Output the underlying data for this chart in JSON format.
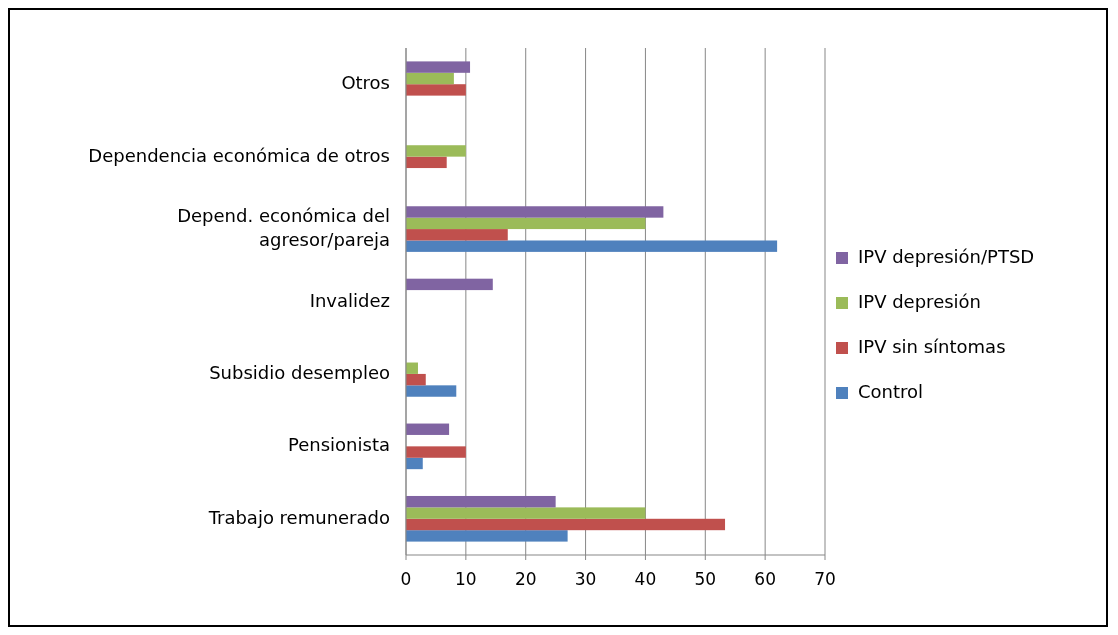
{
  "chart_data": {
    "type": "bar",
    "orientation": "horizontal",
    "categories": [
      "Otros",
      "Dependencia económica de otros",
      "Depend. económica del agresor/pareja",
      "Invalidez",
      "Subsidio desempleo",
      "Pensionista",
      "Trabajo remunerado"
    ],
    "series": [
      {
        "name": "Control",
        "color": "#4f81bd",
        "values": [
          0,
          0,
          62,
          0,
          8.4,
          2.8,
          27
        ]
      },
      {
        "name": "IPV sin síntomas",
        "color": "#c0504d",
        "values": [
          10,
          6.8,
          17,
          0,
          3.3,
          10,
          53.3
        ]
      },
      {
        "name": "IPV depresión",
        "color": "#9bbb59",
        "values": [
          8,
          10,
          40,
          0,
          2,
          0,
          40
        ]
      },
      {
        "name": "IPV depresión/PTSD",
        "color": "#8064a2",
        "values": [
          10.7,
          0,
          43,
          14.5,
          0,
          7.2,
          25
        ]
      }
    ],
    "xlim": [
      0,
      70
    ],
    "xticks": [
      0,
      10,
      20,
      30,
      40,
      50,
      60,
      70
    ],
    "grid": "x",
    "legend": "right"
  }
}
